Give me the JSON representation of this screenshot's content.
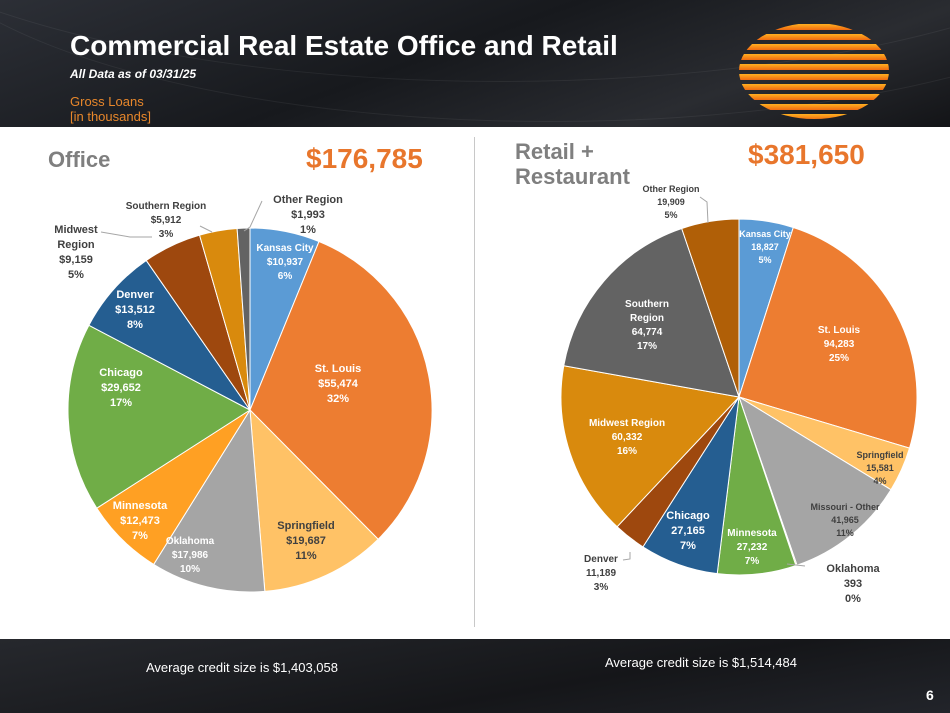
{
  "header": {
    "title": "Commercial Real Estate Office and Retail",
    "subtitle": "All Data as of 03/31/25",
    "gross_line1": "Gross Loans",
    "gross_line2": "[in thousands]"
  },
  "office": {
    "title": "Office",
    "total": "$176,785",
    "avg_credit": "Average credit size is $1,403,058"
  },
  "retail": {
    "title_line1": "Retail +",
    "title_line2": "Restaurant",
    "total": "$381,650",
    "avg_credit": "Average credit size is $1,514,484"
  },
  "page_number": "6",
  "colors": {
    "accent_orange": "#e8762c",
    "blue": "#5b9bd5",
    "orange": "#ed7d31",
    "light_orange": "#ffc266",
    "gray": "#a5a5a5",
    "bright_orange": "#ffa023",
    "green": "#70ad47",
    "dark_blue": "#255e91",
    "rust": "#9e480e",
    "dark_gold": "#c77b0a",
    "dark_gray": "#636363"
  },
  "chart_data": [
    {
      "type": "pie",
      "title": "Office",
      "total_label": "$176,785",
      "units": "thousands",
      "slices": [
        {
          "name": "Kansas City",
          "value_label": "$10,937",
          "value": 10937,
          "pct": "6%",
          "color": "#5b9bd5"
        },
        {
          "name": "St. Louis",
          "value_label": "$55,474",
          "value": 55474,
          "pct": "32%",
          "color": "#ed7d31"
        },
        {
          "name": "Springfield",
          "value_label": "$19,687",
          "value": 19687,
          "pct": "11%",
          "color": "#ffc266"
        },
        {
          "name": "Oklahoma",
          "value_label": "$17,986",
          "value": 17986,
          "pct": "10%",
          "color": "#a5a5a5"
        },
        {
          "name": "Minnesota",
          "value_label": "$12,473",
          "value": 12473,
          "pct": "7%",
          "color": "#ffa023"
        },
        {
          "name": "Chicago",
          "value_label": "$29,652",
          "value": 29652,
          "pct": "17%",
          "color": "#70ad47"
        },
        {
          "name": "Denver",
          "value_label": "$13,512",
          "value": 13512,
          "pct": "8%",
          "color": "#255e91"
        },
        {
          "name": "Midwest Region",
          "value_label": "$9,159",
          "value": 9159,
          "pct": "5%",
          "color": "#9e480e"
        },
        {
          "name": "Southern Region",
          "value_label": "$5,912",
          "value": 5912,
          "pct": "3%",
          "color": "#d98a0d"
        },
        {
          "name": "Other Region",
          "value_label": "$1,993",
          "value": 1993,
          "pct": "1%",
          "color": "#636363"
        }
      ]
    },
    {
      "type": "pie",
      "title": "Retail + Restaurant",
      "total_label": "$381,650",
      "units": "thousands",
      "slices": [
        {
          "name": "Kansas City",
          "value_label": "18,827",
          "value": 18827,
          "pct": "5%",
          "color": "#5b9bd5"
        },
        {
          "name": "St. Louis",
          "value_label": "94,283",
          "value": 94283,
          "pct": "25%",
          "color": "#ed7d31"
        },
        {
          "name": "Springfield",
          "value_label": "15,581",
          "value": 15581,
          "pct": "4%",
          "color": "#ffc266"
        },
        {
          "name": "Missouri - Other",
          "value_label": "41,965",
          "value": 41965,
          "pct": "11%",
          "color": "#a5a5a5"
        },
        {
          "name": "Oklahoma",
          "value_label": "393",
          "value": 393,
          "pct": "0%",
          "color": "#ffa023"
        },
        {
          "name": "Minnesota",
          "value_label": "27,232",
          "value": 27232,
          "pct": "7%",
          "color": "#70ad47"
        },
        {
          "name": "Chicago",
          "value_label": "27,165",
          "value": 27165,
          "pct": "7%",
          "color": "#255e91"
        },
        {
          "name": "Denver",
          "value_label": "11,189",
          "value": 11189,
          "pct": "3%",
          "color": "#9e480e"
        },
        {
          "name": "Midwest Region",
          "value_label": "60,332",
          "value": 60332,
          "pct": "16%",
          "color": "#d98a0d"
        },
        {
          "name": "Southern Region",
          "value_label": "64,774",
          "value": 64774,
          "pct": "17%",
          "color": "#636363"
        },
        {
          "name": "Other Region",
          "value_label": "19,909",
          "value": 19909,
          "pct": "5%",
          "color": "#b05f07"
        }
      ]
    }
  ]
}
